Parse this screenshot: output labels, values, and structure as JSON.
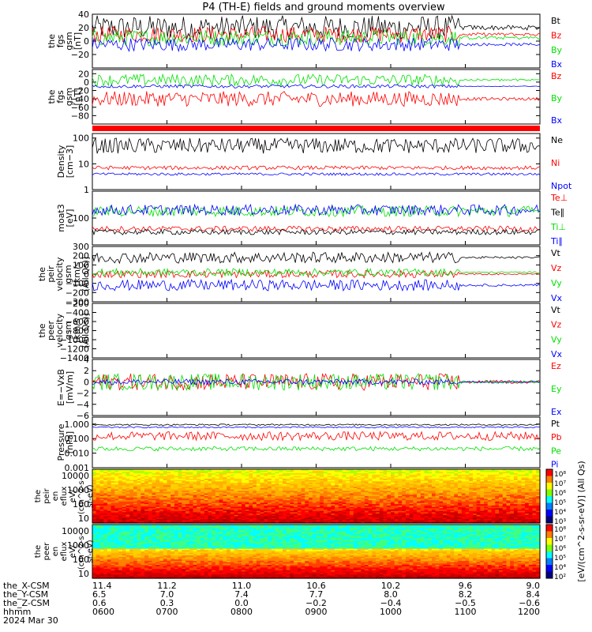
{
  "title": "P4 (TH-E) fields and ground moments overview",
  "colors": {
    "black": "#000000",
    "red": "#ff0000",
    "green": "#00e000",
    "blue": "#0000ff"
  },
  "chart_data": [
    {
      "id": "fgs_gsm",
      "type": "line",
      "ylabel": [
        "the",
        "fgs",
        "gsm",
        "[nT]"
      ],
      "ylim": [
        -40,
        40
      ],
      "yticks": [
        "40",
        "20",
        "0",
        "−20"
      ],
      "series": [
        {
          "name": "Bt",
          "color": "#000000",
          "level": 20,
          "amp": 18
        },
        {
          "name": "Bz",
          "color": "#ff0000",
          "level": 10,
          "amp": 12
        },
        {
          "name": "By",
          "color": "#00e000",
          "level": 5,
          "amp": 12
        },
        {
          "name": "Bx",
          "color": "#0000ff",
          "level": -5,
          "amp": 10
        }
      ]
    },
    {
      "id": "fgs_gsm_2",
      "type": "line",
      "ylabel": [
        "the",
        "fgs",
        "gsm",
        "[nT]"
      ],
      "ylim": [
        -100,
        30
      ],
      "yticks": [
        "20",
        "0",
        "−20",
        "−40",
        "−60",
        "−80"
      ],
      "series": [
        {
          "name": "Bz",
          "color": "#ff0000",
          "level": -40,
          "amp": 18
        },
        {
          "name": "By",
          "color": "#00e000",
          "level": 5,
          "amp": 14
        },
        {
          "name": "Bx",
          "color": "#0000ff",
          "level": -10,
          "amp": 4
        }
      ]
    },
    {
      "id": "density",
      "type": "line",
      "log": true,
      "ylabel": [
        "Density",
        "[cm−3]"
      ],
      "ylim": [
        1,
        150
      ],
      "yticks": [
        "100",
        "10",
        "1"
      ],
      "series": [
        {
          "name": "Ne",
          "color": "#000000",
          "level": 50,
          "amp": 0.6
        },
        {
          "name": "Ni",
          "color": "#ff0000",
          "level": 7,
          "amp": 0.15
        },
        {
          "name": "Npot",
          "color": "#0000ff",
          "level": 4,
          "amp": 0.1
        }
      ]
    },
    {
      "id": "temperature",
      "type": "line",
      "log": true,
      "ylabel": [
        "moat3",
        "[eV]"
      ],
      "ylim": [
        10,
        1000
      ],
      "yticks": [
        "100"
      ],
      "series": [
        {
          "name": "Te⊥",
          "color": "#ff0000",
          "level": 40,
          "amp": 0.2
        },
        {
          "name": "Te∥",
          "color": "#000000",
          "level": 30,
          "amp": 0.2
        },
        {
          "name": "Ti⊥",
          "color": "#00e000",
          "level": 180,
          "amp": 0.4
        },
        {
          "name": "Ti∥",
          "color": "#0000ff",
          "level": 200,
          "amp": 0.4
        }
      ]
    },
    {
      "id": "peir_velocity",
      "type": "line",
      "ylabel": [
        "the",
        "peir",
        "velocity",
        "gsm",
        "[km/s",
        "(All Qs)]"
      ],
      "ylim": [
        -300,
        300
      ],
      "yticks": [
        "300",
        "200",
        "100",
        "0",
        "−100",
        "−200",
        "−300"
      ],
      "series": [
        {
          "name": "Vt",
          "color": "#000000",
          "level": 180,
          "amp": 60
        },
        {
          "name": "Vz",
          "color": "#ff0000",
          "level": 0,
          "amp": 40
        },
        {
          "name": "Vy",
          "color": "#00e000",
          "level": 20,
          "amp": 40
        },
        {
          "name": "Vx",
          "color": "#0000ff",
          "level": -120,
          "amp": 60
        }
      ]
    },
    {
      "id": "peer_velocity",
      "type": "line",
      "ylabel": [
        "the",
        "peer",
        "velocity",
        "gsm",
        "[km/s",
        "(All Qs)]"
      ],
      "ylim": [
        -1400,
        -200
      ],
      "yticks": [
        "−200",
        "−400",
        "−600",
        "−800",
        "−1000",
        "−1200",
        "−1400"
      ],
      "series": [
        {
          "name": "Vt",
          "color": "#000000"
        },
        {
          "name": "Vz",
          "color": "#ff0000"
        },
        {
          "name": "Vy",
          "color": "#00e000"
        },
        {
          "name": "Vx",
          "color": "#0000ff"
        }
      ]
    },
    {
      "id": "efield",
      "type": "line",
      "ylabel": [
        "E=−VxB",
        "[mV/m]"
      ],
      "ylim": [
        -6,
        4
      ],
      "yticks": [
        "4",
        "2",
        "0",
        "−2",
        "−4",
        "−6"
      ],
      "series": [
        {
          "name": "Ez",
          "color": "#ff0000",
          "level": 0,
          "amp": 1.5
        },
        {
          "name": "Ey",
          "color": "#00e000",
          "level": 0,
          "amp": 1.5
        },
        {
          "name": "Ex",
          "color": "#0000ff",
          "level": 0,
          "amp": 0.5
        }
      ]
    },
    {
      "id": "pressure",
      "type": "line",
      "log": true,
      "ylabel": [
        "Pressure",
        "[nPa]"
      ],
      "ylim": [
        0.001,
        3
      ],
      "yticks": [
        "1.000",
        "0.100",
        "0.010",
        "0.001"
      ],
      "series": [
        {
          "name": "Pt",
          "color": "#000000",
          "level": 0.9,
          "amp": 0.1
        },
        {
          "name": "Pb",
          "color": "#ff0000",
          "level": 0.15,
          "amp": 0.6
        },
        {
          "name": "Pe",
          "color": "#00e000",
          "level": 0.02,
          "amp": 0.3
        },
        {
          "name": "Pi",
          "color": "#0000ff",
          "level": 0.6,
          "amp": 0.1
        }
      ]
    },
    {
      "id": "peir_en_eflux",
      "type": "heatmap",
      "ylabel": [
        "the",
        "peir",
        "en",
        "eflux",
        "eV/",
        "(cm^2-s-",
        "sr-eV)"
      ],
      "yticks": [
        "10000",
        "1000",
        "100",
        "10"
      ],
      "colorbar_ticks": [
        "10⁸",
        "10⁷",
        "10⁶",
        "10⁵",
        "10⁴",
        "10³"
      ]
    },
    {
      "id": "peer_en_eflux",
      "type": "heatmap",
      "ylabel": [
        "the",
        "peer",
        "en",
        "eflux",
        "eV/",
        "(cm^2-s-",
        "sr-eV)"
      ],
      "yticks": [
        "10000",
        "1000",
        "100",
        "10"
      ],
      "colorbar_ticks": [
        "10⁸",
        "10⁷",
        "10⁶",
        "10⁵",
        "10⁴",
        "10²"
      ]
    }
  ],
  "colorbar_label": "[eV/(cm^2-s-sr-eV)] (All Qs)",
  "xaxis": {
    "rows": [
      {
        "label": "the_X-CSM",
        "values": [
          "11.4",
          "11.2",
          "11.0",
          "10.6",
          "10.2",
          "9.6",
          "9.0"
        ]
      },
      {
        "label": "the_Y-CSM",
        "values": [
          "6.5",
          "7.0",
          "7.4",
          "7.7",
          "8.0",
          "8.2",
          "8.4"
        ]
      },
      {
        "label": "the_Z-CSM",
        "values": [
          "0.6",
          "0.3",
          "0.0",
          "−0.2",
          "−0.4",
          "−0.5",
          "−0.6"
        ]
      },
      {
        "label": "hhmm",
        "values": [
          "0600",
          "0700",
          "0800",
          "0900",
          "1000",
          "1100",
          "1200"
        ]
      }
    ],
    "date": "2024 Mar 30"
  }
}
